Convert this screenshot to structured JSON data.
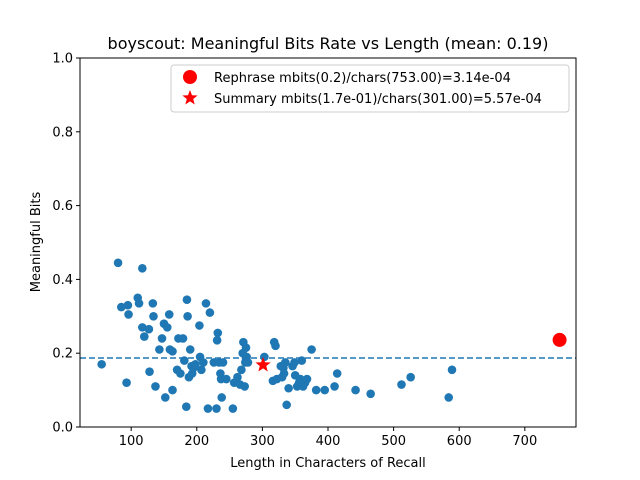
{
  "chart_data": {
    "type": "scatter",
    "title": "boyscout: Meaningful Bits Rate vs Length (mean: 0.19)",
    "xlabel": "Length in Characters of Recall",
    "ylabel": "Meaningful Bits",
    "xlim": [
      22,
      778
    ],
    "ylim": [
      0,
      1
    ],
    "xticks": [
      100,
      200,
      300,
      400,
      500,
      600,
      700
    ],
    "yticks": [
      0.0,
      0.2,
      0.4,
      0.6,
      0.8,
      1.0
    ],
    "mean_line": 0.187,
    "grid": false,
    "legend_position": "top-right",
    "colors": {
      "points": "#1f77b4",
      "mean_line": "#1f77b4",
      "rephrase": "#ff0000",
      "summary": "#ff0000"
    },
    "series": [
      {
        "name": "",
        "points": [
          [
            55,
            0.17
          ],
          [
            80,
            0.445
          ],
          [
            85,
            0.325
          ],
          [
            93,
            0.12
          ],
          [
            95,
            0.33
          ],
          [
            96,
            0.305
          ],
          [
            110,
            0.35
          ],
          [
            112,
            0.335
          ],
          [
            117,
            0.43
          ],
          [
            117,
            0.27
          ],
          [
            120,
            0.245
          ],
          [
            127,
            0.265
          ],
          [
            128,
            0.15
          ],
          [
            133,
            0.335
          ],
          [
            134,
            0.3
          ],
          [
            137,
            0.11
          ],
          [
            143,
            0.21
          ],
          [
            147,
            0.24
          ],
          [
            150,
            0.28
          ],
          [
            152,
            0.08
          ],
          [
            155,
            0.27
          ],
          [
            158,
            0.305
          ],
          [
            159,
            0.21
          ],
          [
            163,
            0.1
          ],
          [
            163,
            0.205
          ],
          [
            170,
            0.155
          ],
          [
            172,
            0.24
          ],
          [
            175,
            0.145
          ],
          [
            179,
            0.24
          ],
          [
            181,
            0.18
          ],
          [
            184,
            0.055
          ],
          [
            185,
            0.345
          ],
          [
            186,
            0.3
          ],
          [
            188,
            0.135
          ],
          [
            190,
            0.21
          ],
          [
            192,
            0.165
          ],
          [
            193,
            0.145
          ],
          [
            195,
            0.16
          ],
          [
            198,
            0.17
          ],
          [
            204,
            0.275
          ],
          [
            205,
            0.19
          ],
          [
            207,
            0.155
          ],
          [
            210,
            0.175
          ],
          [
            214,
            0.335
          ],
          [
            217,
            0.05
          ],
          [
            220,
            0.31
          ],
          [
            226,
            0.175
          ],
          [
            230,
            0.05
          ],
          [
            231,
            0.235
          ],
          [
            232,
            0.255
          ],
          [
            234,
            0.175
          ],
          [
            236,
            0.145
          ],
          [
            237,
            0.13
          ],
          [
            238,
            0.08
          ],
          [
            240,
            0.175
          ],
          [
            245,
            0.13
          ],
          [
            255,
            0.05
          ],
          [
            257,
            0.12
          ],
          [
            262,
            0.135
          ],
          [
            266,
            0.115
          ],
          [
            268,
            0.155
          ],
          [
            270,
            0.2
          ],
          [
            271,
            0.23
          ],
          [
            273,
            0.11
          ],
          [
            274,
            0.175
          ],
          [
            275,
            0.185
          ],
          [
            275,
            0.215
          ],
          [
            276,
            0.19
          ],
          [
            278,
            0.175
          ],
          [
            303,
            0.19
          ],
          [
            316,
            0.125
          ],
          [
            318,
            0.23
          ],
          [
            320,
            0.22
          ],
          [
            322,
            0.13
          ],
          [
            328,
            0.165
          ],
          [
            330,
            0.135
          ],
          [
            332,
            0.16
          ],
          [
            333,
            0.145
          ],
          [
            335,
            0.175
          ],
          [
            337,
            0.06
          ],
          [
            340,
            0.105
          ],
          [
            346,
            0.165
          ],
          [
            349,
            0.175
          ],
          [
            350,
            0.14
          ],
          [
            353,
            0.11
          ],
          [
            356,
            0.12
          ],
          [
            358,
            0.13
          ],
          [
            360,
            0.18
          ],
          [
            362,
            0.11
          ],
          [
            365,
            0.12
          ],
          [
            368,
            0.13
          ],
          [
            375,
            0.21
          ],
          [
            382,
            0.1
          ],
          [
            395,
            0.1
          ],
          [
            410,
            0.11
          ],
          [
            414,
            0.145
          ],
          [
            442,
            0.1
          ],
          [
            465,
            0.09
          ],
          [
            512,
            0.115
          ],
          [
            526,
            0.135
          ],
          [
            584,
            0.08
          ],
          [
            589,
            0.155
          ]
        ]
      }
    ],
    "rephrase": {
      "label": "Rephrase mbits(0.2)/chars(753.00)=3.14e-04",
      "x": 753,
      "y": 0.236,
      "marker": "circle"
    },
    "summary": {
      "label": "Summary mbits(1.7e-01)/chars(301.00)=5.57e-04",
      "x": 301,
      "y": 0.168,
      "marker": "star"
    }
  }
}
